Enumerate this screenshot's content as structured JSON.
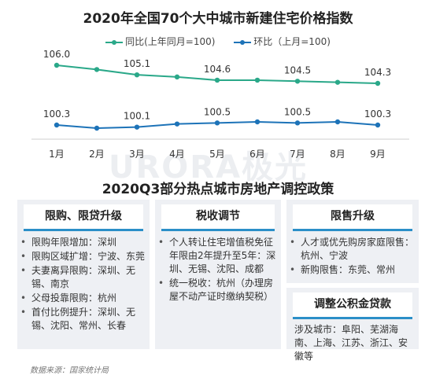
{
  "chart_data": {
    "type": "line",
    "title": "2020年全国70个大中城市新建住宅价格指数",
    "categories": [
      "1月",
      "2月",
      "3月",
      "4月",
      "5月",
      "6月",
      "7月",
      "8月",
      "9月"
    ],
    "series": [
      {
        "name": "同比(上年同月=100)",
        "color": "#2aa889",
        "values": [
          106.0,
          105.6,
          105.1,
          104.9,
          104.6,
          104.6,
          104.5,
          104.4,
          104.3
        ]
      },
      {
        "name": "环比（上月=100)",
        "color": "#1d73b8",
        "values": [
          100.3,
          100.0,
          100.1,
          100.4,
          100.5,
          100.6,
          100.5,
          100.6,
          100.3
        ]
      }
    ],
    "data_labels": [
      {
        "series": 0,
        "index": 0,
        "text": "106.0"
      },
      {
        "series": 0,
        "index": 2,
        "text": "105.1"
      },
      {
        "series": 0,
        "index": 4,
        "text": "104.6"
      },
      {
        "series": 0,
        "index": 6,
        "text": "104.5"
      },
      {
        "series": 0,
        "index": 8,
        "text": "104.3"
      },
      {
        "series": 1,
        "index": 0,
        "text": "100.3"
      },
      {
        "series": 1,
        "index": 2,
        "text": "100.1"
      },
      {
        "series": 1,
        "index": 4,
        "text": "100.5"
      },
      {
        "series": 1,
        "index": 6,
        "text": "100.5"
      },
      {
        "series": 1,
        "index": 8,
        "text": "100.3"
      }
    ],
    "grid": false,
    "legend_position": "top-center"
  },
  "watermark": "URORA极光",
  "policy": {
    "title": "2020Q3部分热点城市房地产调控政策",
    "purchase": {
      "header": "限购、限贷升级",
      "items": [
        "限购年限增加：深圳",
        "限购区域扩增：宁波、东莞",
        "夫妻离异限购：深圳、无锡、南京",
        "父母投靠限购：杭州",
        "首付比例提升：深圳、无锡、沈阳、常州、长春"
      ]
    },
    "tax": {
      "header": "税收调节",
      "items": [
        "个人转让住宅增值税免征年限由2年提升至5年：深圳、无锡、沈阳、成都",
        "统一税收：杭州（办理房屋不动产证时缴纳契税）"
      ]
    },
    "sales": {
      "header": "限售升级",
      "items": [
        "人才或优先购房家庭限售：杭州、宁波",
        "新购限售：东莞、常州"
      ]
    },
    "fund": {
      "header": "调整公积金贷款",
      "text": "涉及城市：阜阳、芜湖海南、上海、江苏、浙江、安徽等"
    }
  },
  "source": "数据来源：国家统计局"
}
